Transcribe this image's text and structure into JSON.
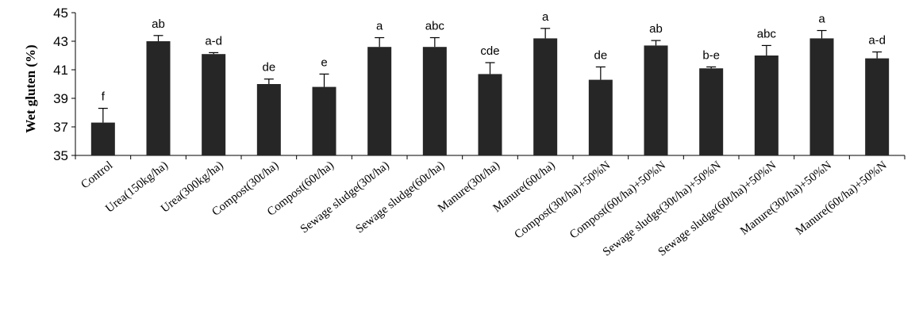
{
  "chart_data": {
    "type": "bar",
    "ylabel": "Wet  gluten (%)",
    "xlabel": "",
    "ylim": [
      35,
      45
    ],
    "yticks": [
      "35",
      "37",
      "39",
      "41",
      "43",
      "45"
    ],
    "grid": false,
    "bar_color": "#262626",
    "categories": [
      "Control",
      "Urea(150kg/ha)",
      "Urea(300kg/ha)",
      "Compost(30t/ha)",
      "Compost(60t/ha)",
      "Sewage sludge(30t/ha)",
      "Sewage sludge(60t/ha)",
      "Manure(30t/ha)",
      "Manure(60t/ha)",
      "Compost(30t/ha)+50%N",
      "Compost(60t/ha)+50%N",
      "Sewage sludge(30t/ha)+50%N",
      "Sewage sludge(60t/ha)+50%N",
      "Manure(30t/ha)+50%N",
      "Manure(60t/ha)+50%N"
    ],
    "values": [
      37.3,
      43.0,
      42.1,
      40.0,
      39.8,
      42.6,
      42.6,
      40.7,
      43.2,
      40.3,
      42.7,
      41.1,
      42.0,
      43.2,
      41.8
    ],
    "errors": [
      1.0,
      0.4,
      0.1,
      0.35,
      0.9,
      0.65,
      0.65,
      0.8,
      0.7,
      0.9,
      0.35,
      0.1,
      0.7,
      0.55,
      0.45
    ],
    "significance_letters": [
      "f",
      "ab",
      "a-d",
      "de",
      "e",
      "a",
      "abc",
      "cde",
      "a",
      "de",
      "ab",
      "b-e",
      "abc",
      "a",
      "a-d"
    ]
  }
}
